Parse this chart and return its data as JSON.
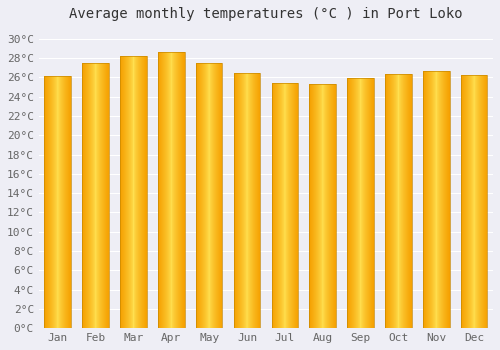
{
  "title": "Average monthly temperatures (°C ) in Port Loko",
  "months": [
    "Jan",
    "Feb",
    "Mar",
    "Apr",
    "May",
    "Jun",
    "Jul",
    "Aug",
    "Sep",
    "Oct",
    "Nov",
    "Dec"
  ],
  "values": [
    26.1,
    27.5,
    28.2,
    28.6,
    27.5,
    26.4,
    25.4,
    25.3,
    25.9,
    26.3,
    26.7,
    26.2
  ],
  "bar_color_center": "#FFE050",
  "bar_color_edge": "#F5A000",
  "bar_outline_color": "#C88800",
  "ylim": [
    0,
    31
  ],
  "ytick_step": 2,
  "background_color": "#eeeef5",
  "grid_color": "#ffffff",
  "title_fontsize": 10,
  "tick_fontsize": 8,
  "bar_width": 0.7
}
